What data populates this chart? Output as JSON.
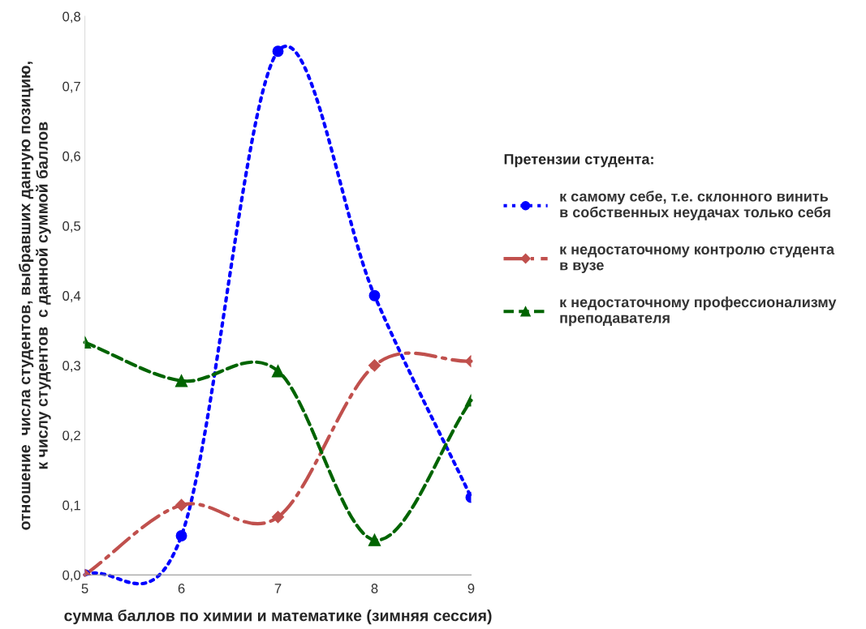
{
  "chart_data": {
    "type": "line",
    "xlabel": "сумма баллов по химии и математике (зимняя сессия)",
    "ylabel": "отношение  числа студентов, выбравших данную позицию,\nк числу студентов  с данной суммой баллов",
    "legend_title": "Претензии студента:",
    "x": [
      5,
      6,
      7,
      8,
      9
    ],
    "xlim": [
      5,
      9
    ],
    "xticks": [
      5,
      6,
      7,
      8,
      9
    ],
    "ylim": [
      0,
      0.8
    ],
    "yticks": [
      {
        "value": 0,
        "label": "0,0"
      },
      {
        "value": 0.1,
        "label": "0,1"
      },
      {
        "value": 0.2,
        "label": "0,2"
      },
      {
        "value": 0.3,
        "label": "0,3"
      },
      {
        "value": 0.4,
        "label": "0,4"
      },
      {
        "value": 0.5,
        "label": "0,5"
      },
      {
        "value": 0.6,
        "label": "0,6"
      },
      {
        "value": 0.7,
        "label": "0,7"
      },
      {
        "value": 0.8,
        "label": "0,8"
      }
    ],
    "grid": false,
    "legend": "right",
    "series": [
      {
        "name": "к самому себе, т.е. склонного винить\nв собственных неудачах только себя",
        "color": "#0000ff",
        "marker": "circle",
        "line_style": "dotted",
        "values": [
          0,
          0.056,
          0.75,
          0.4,
          0.111
        ]
      },
      {
        "name": "к недостаточному контролю студента\nв вузе",
        "color": "#c0504d",
        "marker": "diamond",
        "line_style": "dashdot",
        "values": [
          0,
          0.1,
          0.083,
          0.3,
          0.306
        ]
      },
      {
        "name": "к недостаточному профессионализму\nпреподавателя",
        "color": "#006400",
        "marker": "triangle",
        "line_style": "dashed",
        "values": [
          0.333,
          0.278,
          0.292,
          0.05,
          0.25
        ]
      }
    ]
  }
}
